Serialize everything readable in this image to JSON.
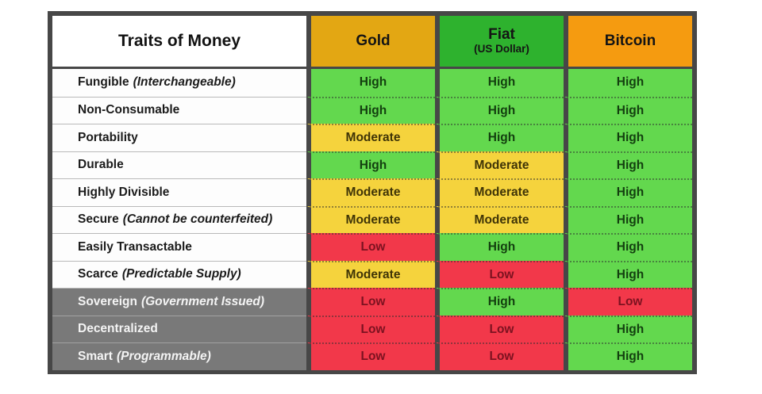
{
  "chart_data": {
    "type": "table",
    "title": "Traits of Money",
    "column_headers": [
      {
        "label": "Gold",
        "sub": "",
        "color": "#E3A713"
      },
      {
        "label": "Fiat",
        "sub": "(US Dollar)",
        "color": "#2EB22E"
      },
      {
        "label": "Bitcoin",
        "sub": "",
        "color": "#F59B10"
      }
    ],
    "palette": {
      "High": {
        "bg": "#63D84E",
        "text": "#133f0f"
      },
      "Moderate": {
        "bg": "#F5D33D",
        "text": "#3f3407"
      },
      "Low": {
        "bg": "#F2384A",
        "text": "#7c1220"
      }
    },
    "border_color": "#474747",
    "dark_row_color": "#797979",
    "rows": [
      {
        "title": "Fungible",
        "note": "(Interchangeable)",
        "gold": "High",
        "fiat": "High",
        "bitcoin": "High"
      },
      {
        "title": "Non-Consumable",
        "note": "",
        "gold": "High",
        "fiat": "High",
        "bitcoin": "High"
      },
      {
        "title": "Portability",
        "note": "",
        "gold": "Moderate",
        "fiat": "High",
        "bitcoin": "High"
      },
      {
        "title": "Durable",
        "note": "",
        "gold": "High",
        "fiat": "Moderate",
        "bitcoin": "High"
      },
      {
        "title": "Highly Divisible",
        "note": "",
        "gold": "Moderate",
        "fiat": "Moderate",
        "bitcoin": "High"
      },
      {
        "title": "Secure",
        "note": "(Cannot be counterfeited)",
        "gold": "Moderate",
        "fiat": "Moderate",
        "bitcoin": "High"
      },
      {
        "title": "Easily Transactable",
        "note": "",
        "gold": "Low",
        "fiat": "High",
        "bitcoin": "High"
      },
      {
        "title": "Scarce",
        "note": "(Predictable Supply)",
        "gold": "Moderate",
        "fiat": "Low",
        "bitcoin": "High"
      },
      {
        "title": "Sovereign",
        "note": "(Government Issued)",
        "gold": "Low",
        "fiat": "High",
        "bitcoin": "Low"
      },
      {
        "title": "Decentralized",
        "note": "",
        "gold": "Low",
        "fiat": "Low",
        "bitcoin": "High"
      },
      {
        "title": "Smart",
        "note": "(Programmable)",
        "gold": "Low",
        "fiat": "Low",
        "bitcoin": "High"
      }
    ]
  }
}
